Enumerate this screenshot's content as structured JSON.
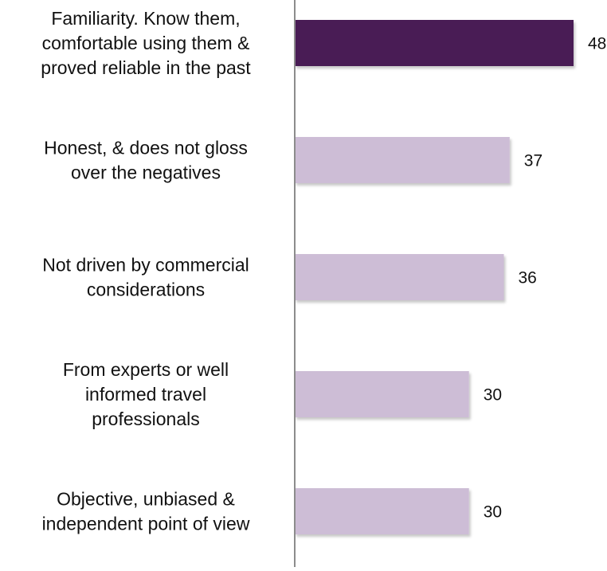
{
  "chart_data": {
    "type": "bar",
    "orientation": "horizontal",
    "title": "",
    "xlabel": "",
    "ylabel": "",
    "categories": [
      "Familiarity. Know them,\ncomfortable using them &\nproved reliable in the past",
      "Honest, & does not gloss\nover the negatives",
      "Not driven by commercial\nconsiderations",
      "From experts or well\ninformed travel\nprofessionals",
      "Objective, unbiased &\nindependent point of view"
    ],
    "values": [
      48,
      37,
      36,
      30,
      30
    ],
    "data_labels": [
      "48",
      "37",
      "36",
      "30",
      "30"
    ],
    "xlim": [
      0,
      48
    ],
    "grid": false,
    "legend": "none",
    "colors": {
      "highlight": "#4a1c55",
      "default": "#cdbdd6",
      "axis": "#8c8c8c",
      "text": "#111111"
    },
    "highlight_index": 0
  }
}
